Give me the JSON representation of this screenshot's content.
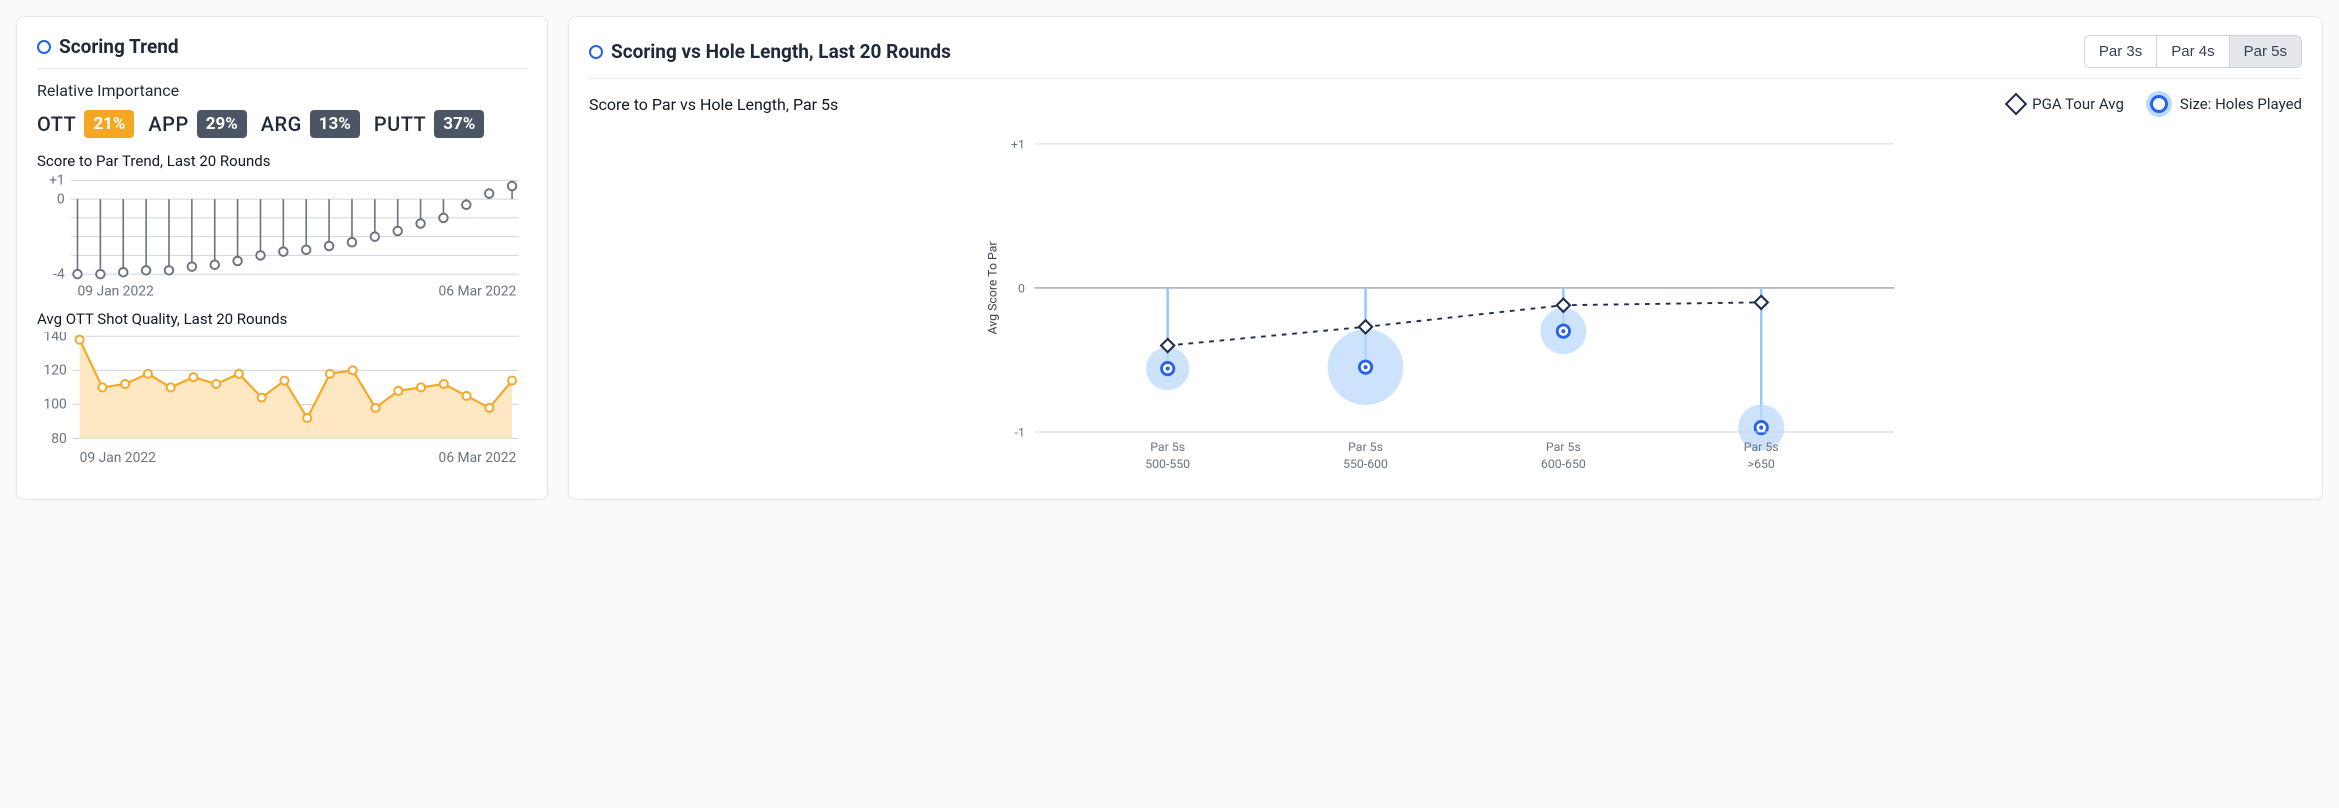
{
  "colors": {
    "blue": "#2563eb",
    "blue_light": "#bcdafc",
    "orange": "#f5a623",
    "orange_fill": "#fde8c3",
    "dark_chip": "#4b5563",
    "grey_marker": "#6b7280",
    "grid": "#d1d5db",
    "axis": "#9ca3af",
    "diamond": "#1f2d4d",
    "muted": "#6b7280",
    "tab_active_bg": "#e5e7eb"
  },
  "left": {
    "title": "Scoring Trend",
    "importance_label": "Relative Importance",
    "importance": [
      {
        "name": "OTT",
        "value": "21%",
        "highlight": true
      },
      {
        "name": "APP",
        "value": "29%",
        "highlight": false
      },
      {
        "name": "ARG",
        "value": "13%",
        "highlight": false
      },
      {
        "name": "PUTT",
        "value": "37%",
        "highlight": false
      }
    ],
    "score_trend": {
      "title": "Score to Par Trend, Last 20 Rounds",
      "type": "lollipop",
      "ylim": [
        -4,
        1
      ],
      "yticks": [
        1,
        0,
        -4
      ],
      "ytick_labels": [
        "+1",
        "0",
        "-4"
      ],
      "x_start_label": "09 Jan 2022",
      "x_end_label": "06 Mar 2022",
      "marker_color": "#6b7280",
      "grid_color": "#d1d5db",
      "values": [
        -4.0,
        -4.0,
        -3.9,
        -3.8,
        -3.8,
        -3.6,
        -3.5,
        -3.3,
        -3.0,
        -2.8,
        -2.7,
        -2.5,
        -2.3,
        -2.0,
        -1.7,
        -1.3,
        -1.0,
        -0.3,
        0.3,
        0.7
      ]
    },
    "ott_quality": {
      "title": "Avg OTT Shot Quality, Last 20 Rounds",
      "type": "area-line",
      "ylim": [
        80,
        140
      ],
      "yticks": [
        140,
        120,
        100,
        80
      ],
      "line_color": "#f5a623",
      "fill_color": "#fde8c3",
      "marker_stroke": "#f5a623",
      "values": [
        138,
        110,
        112,
        118,
        110,
        116,
        112,
        118,
        104,
        114,
        92,
        118,
        120,
        98,
        108,
        110,
        112,
        105,
        98,
        114
      ]
    }
  },
  "right": {
    "title": "Scoring vs Hole Length, Last 20 Rounds",
    "tabs": [
      {
        "label": "Par 3s",
        "active": false
      },
      {
        "label": "Par 4s",
        "active": false
      },
      {
        "label": "Par 5s",
        "active": true
      }
    ],
    "subtitle": "Score to Par vs Hole Length, Par 5s",
    "legend": {
      "pga": "PGA Tour Avg",
      "size": "Size: Holes Played"
    },
    "chart": {
      "type": "bubble-with-reference-line",
      "y_axis_label": "Avg Score To Par",
      "ylim": [
        -1,
        1
      ],
      "yticks": [
        1,
        0,
        -1
      ],
      "ytick_labels": [
        "+1",
        "0",
        "-1"
      ],
      "grid_color": "#d1d5db",
      "stem_color": "#93c5fd",
      "bubble_fill": "#bcdafc",
      "bubble_ring": "#2563eb",
      "diamond_stroke": "#1f2d4d",
      "ref_line_color": "#1f2d4d",
      "ref_line_dash": "5,6",
      "categories": [
        {
          "line1": "Par 5s",
          "line2": "500-550",
          "player": -0.56,
          "pga": -0.4,
          "size": 18
        },
        {
          "line1": "Par 5s",
          "line2": "550-600",
          "player": -0.55,
          "pga": -0.27,
          "size": 42
        },
        {
          "line1": "Par 5s",
          "line2": "600-650",
          "player": -0.3,
          "pga": -0.12,
          "size": 20
        },
        {
          "line1": "Par 5s",
          "line2": ">650",
          "player": -0.97,
          "pga": -0.1,
          "size": 20
        }
      ]
    }
  }
}
